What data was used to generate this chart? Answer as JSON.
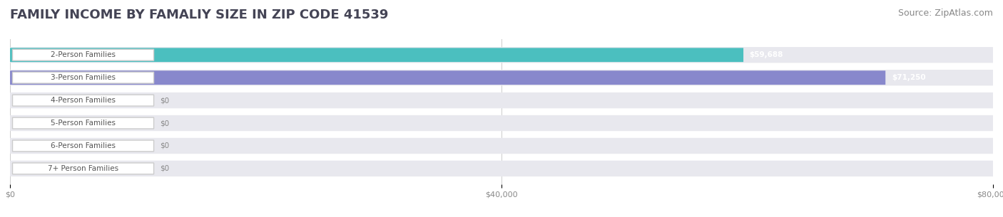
{
  "title": "FAMILY INCOME BY FAMALIY SIZE IN ZIP CODE 41539",
  "source": "Source: ZipAtlas.com",
  "categories": [
    "2-Person Families",
    "3-Person Families",
    "4-Person Families",
    "5-Person Families",
    "6-Person Families",
    "7+ Person Families"
  ],
  "values": [
    59688,
    71250,
    0,
    0,
    0,
    0
  ],
  "bar_colors": [
    "#4bbfbf",
    "#8888cc",
    "#f29aaa",
    "#f5c998",
    "#f29aaa",
    "#aaccee"
  ],
  "label_colors": [
    "#ffffff",
    "#ffffff",
    "#888888",
    "#888888",
    "#888888",
    "#888888"
  ],
  "bar_labels": [
    "$59,688",
    "$71,250",
    "$0",
    "$0",
    "$0",
    "$0"
  ],
  "xlim": [
    0,
    80000
  ],
  "xticks": [
    0,
    40000,
    80000
  ],
  "xticklabels": [
    "$0",
    "$40,000",
    "$80,000"
  ],
  "bg_color": "#ffffff",
  "row_bg_colors": [
    "#f0f0f0",
    "#f0f0f0",
    "#f0f0f0",
    "#f0f0f0",
    "#f0f0f0",
    "#f0f0f0"
  ],
  "title_fontsize": 13,
  "source_fontsize": 9,
  "bar_height": 0.62,
  "label_bg_color": "#ffffff",
  "label_text_color": "#555555"
}
